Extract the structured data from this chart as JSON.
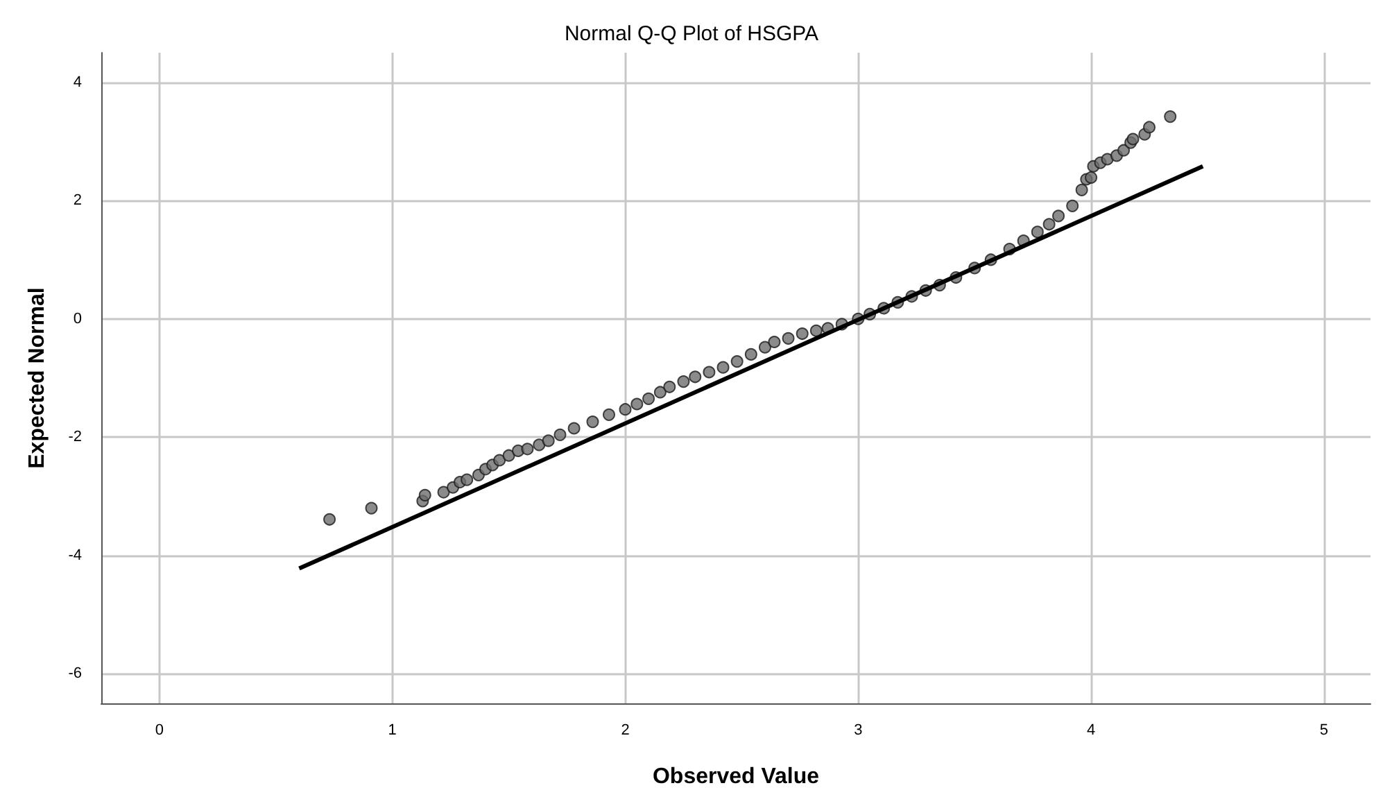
{
  "chart_data": {
    "type": "scatter",
    "title": "Normal Q-Q Plot of HSGPA",
    "xlabel": "Observed Value",
    "ylabel": "Expected Normal",
    "xlim": [
      -0.25,
      5.2
    ],
    "ylim": [
      -6.5,
      4.5
    ],
    "xticks": [
      0,
      1,
      2,
      3,
      4,
      5
    ],
    "yticks": [
      -6,
      -4,
      -2,
      0,
      2,
      4
    ],
    "grid": true,
    "marker": "circle",
    "series": [
      {
        "color": "#6e6e6e",
        "x": [
          0.73,
          0.91,
          1.13,
          1.14,
          1.22,
          1.26,
          1.29,
          1.32,
          1.37,
          1.4,
          1.43,
          1.46,
          1.5,
          1.54,
          1.58,
          1.63,
          1.67,
          1.72,
          1.78,
          1.86,
          1.93,
          2.0,
          2.05,
          2.1,
          2.15,
          2.19,
          2.25,
          2.3,
          2.36,
          2.42,
          2.48,
          2.54,
          2.6,
          2.64,
          2.7,
          2.76,
          2.82,
          2.87,
          2.93,
          3.0,
          3.05,
          3.11,
          3.17,
          3.23,
          3.29,
          3.35,
          3.42,
          3.5,
          3.57,
          3.65,
          3.71,
          3.77,
          3.82,
          3.86,
          3.92,
          3.96,
          3.98,
          4.0,
          4.01,
          4.04,
          4.07,
          4.11,
          4.14,
          4.17,
          4.18,
          4.23,
          4.25,
          4.34
        ],
        "values": [
          -3.39,
          -3.2,
          -3.08,
          -2.98,
          -2.93,
          -2.85,
          -2.76,
          -2.72,
          -2.64,
          -2.54,
          -2.47,
          -2.39,
          -2.31,
          -2.23,
          -2.2,
          -2.13,
          -2.06,
          -1.96,
          -1.85,
          -1.74,
          -1.62,
          -1.53,
          -1.44,
          -1.35,
          -1.24,
          -1.15,
          -1.06,
          -0.98,
          -0.9,
          -0.82,
          -0.72,
          -0.6,
          -0.48,
          -0.39,
          -0.33,
          -0.25,
          -0.2,
          -0.16,
          -0.09,
          0.0,
          0.08,
          0.18,
          0.28,
          0.38,
          0.48,
          0.57,
          0.7,
          0.86,
          1.0,
          1.18,
          1.32,
          1.47,
          1.6,
          1.74,
          1.91,
          2.18,
          2.36,
          2.39,
          2.58,
          2.64,
          2.7,
          2.76,
          2.85,
          2.98,
          3.04,
          3.12,
          3.24,
          3.42
        ]
      },
      {
        "type": "line",
        "color": "#000000",
        "marker": "none",
        "line_style": "solid",
        "x": [
          0.6,
          4.48
        ],
        "values": [
          -4.22,
          2.58
        ]
      }
    ]
  }
}
